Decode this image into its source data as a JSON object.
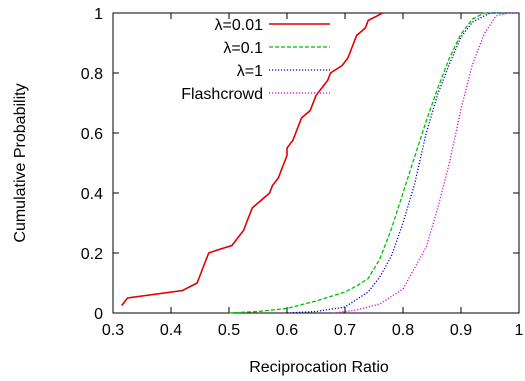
{
  "chart_data": {
    "type": "line",
    "title": "",
    "xlabel": "Reciprocation Ratio",
    "ylabel": "Cumulative Probability",
    "xlim": [
      0.3,
      1.0
    ],
    "ylim": [
      0,
      1
    ],
    "xticks": [
      "0.3",
      "0.4",
      "0.5",
      "0.6",
      "0.7",
      "0.8",
      "0.9",
      "1"
    ],
    "yticks": [
      "0",
      "0.2",
      "0.4",
      "0.6",
      "0.8",
      "1"
    ],
    "grid": false,
    "legend_position": "top-left",
    "series": [
      {
        "name": "λ=0.01",
        "color": "#e00000",
        "style": "solid",
        "points": [
          [
            0.315,
            0.025
          ],
          [
            0.325,
            0.05
          ],
          [
            0.42,
            0.075
          ],
          [
            0.445,
            0.1
          ],
          [
            0.45,
            0.125
          ],
          [
            0.455,
            0.15
          ],
          [
            0.46,
            0.175
          ],
          [
            0.465,
            0.2
          ],
          [
            0.48,
            0.21
          ],
          [
            0.505,
            0.225
          ],
          [
            0.515,
            0.25
          ],
          [
            0.525,
            0.275
          ],
          [
            0.53,
            0.3
          ],
          [
            0.535,
            0.325
          ],
          [
            0.54,
            0.35
          ],
          [
            0.555,
            0.375
          ],
          [
            0.57,
            0.4
          ],
          [
            0.575,
            0.425
          ],
          [
            0.585,
            0.45
          ],
          [
            0.59,
            0.475
          ],
          [
            0.595,
            0.5
          ],
          [
            0.6,
            0.525
          ],
          [
            0.6,
            0.55
          ],
          [
            0.61,
            0.575
          ],
          [
            0.615,
            0.6
          ],
          [
            0.62,
            0.625
          ],
          [
            0.625,
            0.65
          ],
          [
            0.64,
            0.675
          ],
          [
            0.645,
            0.7
          ],
          [
            0.65,
            0.725
          ],
          [
            0.66,
            0.75
          ],
          [
            0.67,
            0.775
          ],
          [
            0.675,
            0.8
          ],
          [
            0.695,
            0.825
          ],
          [
            0.705,
            0.85
          ],
          [
            0.71,
            0.875
          ],
          [
            0.715,
            0.9
          ],
          [
            0.72,
            0.925
          ],
          [
            0.735,
            0.95
          ],
          [
            0.74,
            0.975
          ],
          [
            0.765,
            1.0
          ]
        ]
      },
      {
        "name": "λ=0.1",
        "color": "#00c000",
        "style": "dashed",
        "points": [
          [
            0.5,
            0.0
          ],
          [
            0.55,
            0.005
          ],
          [
            0.6,
            0.015
          ],
          [
            0.65,
            0.04
          ],
          [
            0.7,
            0.07
          ],
          [
            0.72,
            0.09
          ],
          [
            0.74,
            0.115
          ],
          [
            0.76,
            0.18
          ],
          [
            0.78,
            0.28
          ],
          [
            0.8,
            0.4
          ],
          [
            0.82,
            0.52
          ],
          [
            0.84,
            0.64
          ],
          [
            0.86,
            0.75
          ],
          [
            0.88,
            0.85
          ],
          [
            0.9,
            0.93
          ],
          [
            0.92,
            0.98
          ],
          [
            0.94,
            1.0
          ],
          [
            1.0,
            1.0
          ]
        ]
      },
      {
        "name": "λ=1",
        "color": "#0000c0",
        "style": "dotted",
        "points": [
          [
            0.6,
            0.0
          ],
          [
            0.65,
            0.005
          ],
          [
            0.7,
            0.02
          ],
          [
            0.74,
            0.07
          ],
          [
            0.76,
            0.12
          ],
          [
            0.78,
            0.19
          ],
          [
            0.8,
            0.3
          ],
          [
            0.82,
            0.43
          ],
          [
            0.84,
            0.6
          ],
          [
            0.86,
            0.73
          ],
          [
            0.88,
            0.83
          ],
          [
            0.9,
            0.92
          ],
          [
            0.92,
            0.97
          ],
          [
            0.95,
            1.0
          ],
          [
            1.0,
            1.0
          ]
        ]
      },
      {
        "name": "Flashcrowd",
        "color": "#e000e0",
        "style": "dotted",
        "points": [
          [
            0.68,
            0.0
          ],
          [
            0.72,
            0.01
          ],
          [
            0.76,
            0.03
          ],
          [
            0.8,
            0.08
          ],
          [
            0.82,
            0.15
          ],
          [
            0.84,
            0.22
          ],
          [
            0.86,
            0.35
          ],
          [
            0.88,
            0.5
          ],
          [
            0.9,
            0.68
          ],
          [
            0.92,
            0.83
          ],
          [
            0.94,
            0.93
          ],
          [
            0.96,
            0.99
          ],
          [
            0.98,
            1.0
          ],
          [
            1.0,
            1.0
          ]
        ]
      }
    ]
  }
}
